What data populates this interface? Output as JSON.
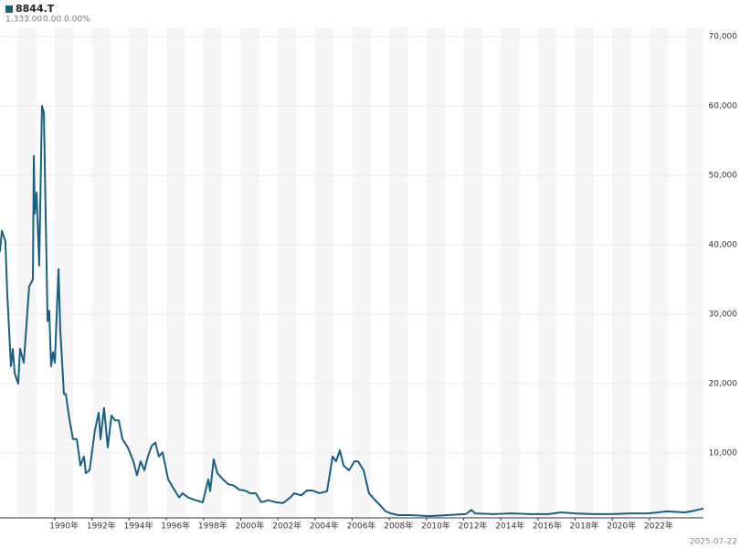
{
  "symbol": "8844.T",
  "last": "1,333.00",
  "change": "0.00",
  "change_pct": "0.00%",
  "date": "2025-07-22",
  "chart_data": {
    "type": "line",
    "color": "#17607f",
    "grid": true,
    "xlim": [
      1987.05,
      2024.91
    ],
    "xticks": [
      {
        "value": 1990,
        "label": "1990年"
      },
      {
        "value": 1992,
        "label": "1992年"
      },
      {
        "value": 1994,
        "label": "1994年"
      },
      {
        "value": 1996,
        "label": "1996年"
      },
      {
        "value": 1998,
        "label": "1998年"
      },
      {
        "value": 2000,
        "label": "2000年"
      },
      {
        "value": 2002,
        "label": "2002年"
      },
      {
        "value": 2004,
        "label": "2004年"
      },
      {
        "value": 2006,
        "label": "2006年"
      },
      {
        "value": 2008,
        "label": "2008年"
      },
      {
        "value": 2010,
        "label": "2010年"
      },
      {
        "value": 2012,
        "label": "2012年"
      },
      {
        "value": 2014,
        "label": "2014年"
      },
      {
        "value": 2016,
        "label": "2016年"
      },
      {
        "value": 2018,
        "label": "2018年"
      },
      {
        "value": 2020,
        "label": "2020年"
      },
      {
        "value": 2022,
        "label": "2022年"
      }
    ],
    "ylim": [
      0,
      70000
    ],
    "yticks": [
      {
        "value": 10000,
        "label": "10,000"
      },
      {
        "value": 20000,
        "label": "20,000"
      },
      {
        "value": 30000,
        "label": "30,000"
      },
      {
        "value": 40000,
        "label": "40,000"
      },
      {
        "value": 50000,
        "label": "50,000"
      },
      {
        "value": 60000,
        "label": "60,000"
      },
      {
        "value": 70000,
        "label": "70,000"
      }
    ],
    "x": [
      1987.05,
      1987.15,
      1987.34,
      1987.44,
      1987.64,
      1987.74,
      1987.84,
      1988.03,
      1988.13,
      1988.33,
      1988.62,
      1988.82,
      1988.87,
      1988.92,
      1989.02,
      1989.16,
      1989.31,
      1989.41,
      1989.61,
      1989.7,
      1989.8,
      1989.9,
      1990.0,
      1990.2,
      1990.29,
      1990.49,
      1990.59,
      1990.79,
      1990.98,
      1991.18,
      1991.38,
      1991.57,
      1991.67,
      1991.87,
      1992.16,
      1992.36,
      1992.46,
      1992.65,
      1992.85,
      1993.05,
      1993.24,
      1993.44,
      1993.64,
      1993.93,
      1994.23,
      1994.42,
      1994.62,
      1994.82,
      1995.01,
      1995.21,
      1995.41,
      1995.6,
      1995.8,
      1996.1,
      1996.39,
      1996.69,
      1996.88,
      1997.18,
      1997.57,
      1997.96,
      1998.26,
      1998.36,
      1998.55,
      1998.75,
      1999.05,
      1999.34,
      1999.64,
      1999.93,
      2000.23,
      2000.52,
      2000.82,
      2001.11,
      2001.5,
      2001.9,
      2002.29,
      2002.68,
      2002.88,
      2003.27,
      2003.57,
      2003.86,
      2004.26,
      2004.65,
      2004.95,
      2005.14,
      2005.34,
      2005.54,
      2005.83,
      2006.13,
      2006.32,
      2006.62,
      2006.91,
      2007.21,
      2007.5,
      2007.8,
      2008.09,
      2008.49,
      2009.17,
      2010.16,
      2011.14,
      2012.12,
      2012.42,
      2012.62,
      2013.6,
      2014.58,
      2015.57,
      2016.55,
      2017.24,
      2018.02,
      2019.01,
      2019.99,
      2020.97,
      2021.96,
      2022.94,
      2023.92,
      2024.42,
      2024.91
    ],
    "values": [
      39000,
      42000,
      40500,
      33000,
      22500,
      25000,
      21500,
      20000,
      25000,
      23000,
      34000,
      35000,
      52800,
      44500,
      47500,
      37000,
      60000,
      59000,
      29000,
      30500,
      22500,
      24500,
      23000,
      36500,
      28000,
      18500,
      18500,
      14800,
      12000,
      12000,
      8200,
      9500,
      7100,
      7500,
      13300,
      15800,
      12000,
      16500,
      10800,
      15400,
      14700,
      14700,
      12000,
      10800,
      8800,
      6800,
      8800,
      7500,
      9500,
      11000,
      11500,
      9500,
      10100,
      6200,
      4900,
      3600,
      4200,
      3600,
      3200,
      2900,
      6200,
      4500,
      9100,
      7100,
      6200,
      5500,
      5300,
      4700,
      4600,
      4200,
      4200,
      2900,
      3200,
      2900,
      2800,
      3600,
      4200,
      3900,
      4600,
      4600,
      4200,
      4500,
      9500,
      8800,
      10400,
      8200,
      7500,
      8800,
      8800,
      7500,
      4200,
      3300,
      2500,
      1600,
      1300,
      1050,
      1050,
      900,
      1050,
      1200,
      1800,
      1300,
      1200,
      1300,
      1200,
      1200,
      1450,
      1300,
      1200,
      1200,
      1300,
      1300,
      1600,
      1450,
      1700,
      2000
    ]
  }
}
